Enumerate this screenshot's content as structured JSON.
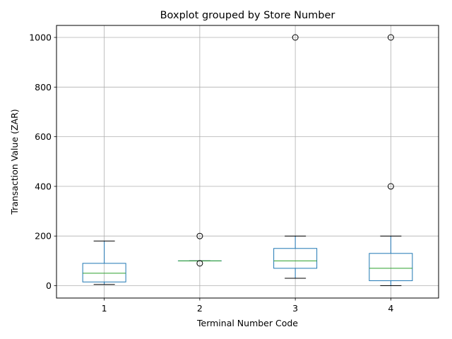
{
  "chart_data": {
    "type": "boxplot",
    "title": "Boxplot grouped by Store Number",
    "xlabel": "Terminal Number Code",
    "ylabel": "Transaction Value (ZAR)",
    "categories": [
      "1",
      "2",
      "3",
      "4"
    ],
    "yticks": [
      0,
      200,
      400,
      600,
      800,
      1000
    ],
    "ylim": [
      -50,
      1050
    ],
    "grid": true,
    "colors": {
      "box": "#1f77b4",
      "median": "#2ca02c",
      "whisker": "#1f77b4",
      "cap": "#000000",
      "flier": "#000000",
      "grid": "#b0b0b0"
    },
    "boxes": [
      {
        "category": "1",
        "whislo": 5,
        "q1": 15,
        "median": 50,
        "q3": 90,
        "whishi": 180,
        "fliers": []
      },
      {
        "category": "2",
        "whislo": 100,
        "q1": 100,
        "median": 100,
        "q3": 100,
        "whishi": 100,
        "fliers": [
          200,
          90
        ]
      },
      {
        "category": "3",
        "whislo": 30,
        "q1": 70,
        "median": 100,
        "q3": 150,
        "whishi": 200,
        "fliers": [
          1000
        ]
      },
      {
        "category": "4",
        "whislo": 0,
        "q1": 20,
        "median": 70,
        "q3": 130,
        "whishi": 200,
        "fliers": [
          400,
          1000
        ]
      }
    ]
  }
}
